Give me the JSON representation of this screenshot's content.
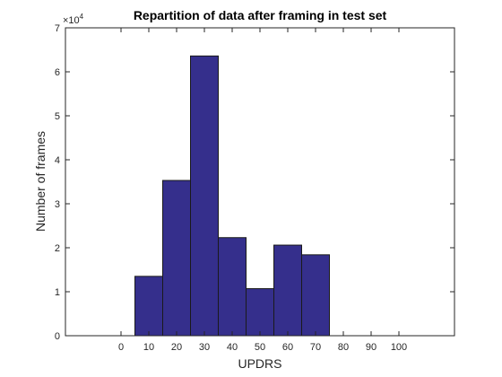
{
  "chart_data": {
    "type": "bar",
    "title": "Repartition of data after framing in test set",
    "xlabel": "UPDRS",
    "ylabel": "Number of frames",
    "xlim": [
      -20,
      120
    ],
    "ylim": [
      0,
      70000
    ],
    "y_exponent_label": "×10",
    "y_exponent_power": "4",
    "bar_color": "#352f8c",
    "bar_edge_color": "#1a1a1a",
    "x_ticks": [
      0,
      10,
      20,
      30,
      40,
      50,
      60,
      70,
      80,
      90,
      100
    ],
    "y_ticks": [
      0,
      10000,
      20000,
      30000,
      40000,
      50000,
      60000,
      70000
    ],
    "y_tick_labels": [
      "0",
      "1",
      "2",
      "3",
      "4",
      "5",
      "6",
      "7"
    ],
    "grid": false,
    "bins": [
      {
        "x0": 5,
        "x1": 15,
        "value": 13500
      },
      {
        "x0": 15,
        "x1": 25,
        "value": 35300
      },
      {
        "x0": 25,
        "x1": 35,
        "value": 63600
      },
      {
        "x0": 35,
        "x1": 45,
        "value": 22300
      },
      {
        "x0": 45,
        "x1": 55,
        "value": 10700
      },
      {
        "x0": 55,
        "x1": 65,
        "value": 20600
      },
      {
        "x0": 65,
        "x1": 75,
        "value": 18400
      }
    ]
  }
}
